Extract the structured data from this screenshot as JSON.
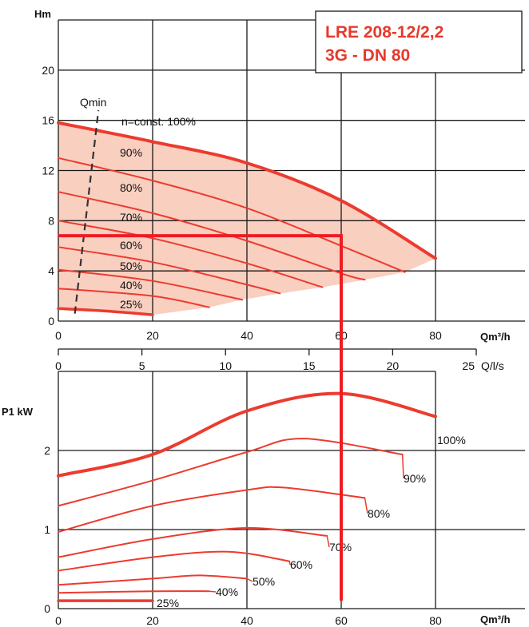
{
  "colors": {
    "curve": "#ec3b2f",
    "fill": "#f9cfc0",
    "grid": "#1a1a1a",
    "text": "#111111",
    "title": "#e53a2c",
    "duty_line": "#ee1c24",
    "qmin": "#333333"
  },
  "title_box": {
    "line1": "LRE 208-12/2,2",
    "line2": "3G - DN 80"
  },
  "chart_data": [
    {
      "type": "line",
      "panel": "head",
      "ylabel": "Hm",
      "xlabel": "Qm³/h",
      "xlim": [
        0,
        80
      ],
      "ylim": [
        0,
        24
      ],
      "x_ticks": [
        "0",
        "20",
        "40",
        "60",
        "80"
      ],
      "y_ticks": [
        "0",
        "4",
        "8",
        "12",
        "16",
        "20"
      ],
      "grid": true,
      "series": [
        {
          "name": "n=const. 100%",
          "x": [
            0,
            20,
            40,
            60,
            80
          ],
          "y": [
            15.8,
            14.3,
            12.6,
            9.6,
            5.0
          ]
        },
        {
          "name": "90%",
          "x": [
            0,
            20,
            40,
            60,
            73.5
          ],
          "y": [
            13.0,
            11.2,
            9.0,
            6.0,
            3.9
          ]
        },
        {
          "name": "80%",
          "x": [
            0,
            20,
            40,
            60,
            65
          ],
          "y": [
            10.3,
            8.6,
            6.4,
            3.8,
            3.3
          ]
        },
        {
          "name": "70%",
          "x": [
            0,
            20,
            40,
            56
          ],
          "y": [
            8.0,
            6.6,
            4.6,
            2.7
          ]
        },
        {
          "name": "60%",
          "x": [
            0,
            20,
            40,
            47
          ],
          "y": [
            5.9,
            4.7,
            2.9,
            2.2
          ]
        },
        {
          "name": "50%",
          "x": [
            0,
            20,
            39
          ],
          "y": [
            4.1,
            3.2,
            1.7
          ]
        },
        {
          "name": "40%",
          "x": [
            0,
            20,
            32
          ],
          "y": [
            2.6,
            2.0,
            1.1
          ]
        },
        {
          "name": "25%",
          "x": [
            0,
            10,
            20
          ],
          "y": [
            1.0,
            0.8,
            0.5
          ]
        }
      ],
      "qmin": {
        "label": "Qmin",
        "x": [
          3.5,
          8.5
        ],
        "y": [
          0.6,
          16.8
        ]
      },
      "operating_point": {
        "x": 60,
        "y": 6.8
      }
    },
    {
      "type": "line",
      "panel": "power",
      "ylabel": "P1 kW",
      "xlabel": "Qm³/h",
      "xlim": [
        0,
        80
      ],
      "ylim": [
        0,
        3
      ],
      "x_ticks": [
        "0",
        "20",
        "40",
        "60",
        "80"
      ],
      "y_ticks": [
        "0",
        "1",
        "2"
      ],
      "secondary_x_label": "Q/l/s",
      "secondary_x_ticks": [
        "0",
        "5",
        "10",
        "15",
        "20",
        "25"
      ],
      "secondary_x_values": [
        0,
        5,
        10,
        15,
        20,
        25
      ],
      "grid": true,
      "series": [
        {
          "name": "100%",
          "x": [
            0,
            20,
            40,
            60,
            80
          ],
          "y": [
            1.68,
            1.95,
            2.5,
            2.72,
            2.43
          ]
        },
        {
          "name": "90%",
          "x": [
            0,
            20,
            40,
            52,
            73
          ],
          "y": [
            1.3,
            1.62,
            1.98,
            2.15,
            1.95
          ]
        },
        {
          "name": "80%",
          "x": [
            0,
            20,
            40,
            48,
            65
          ],
          "y": [
            0.97,
            1.3,
            1.5,
            1.53,
            1.4
          ]
        },
        {
          "name": "70%",
          "x": [
            0,
            20,
            40,
            57
          ],
          "y": [
            0.65,
            0.88,
            1.02,
            0.92
          ]
        },
        {
          "name": "60%",
          "x": [
            0,
            20,
            36,
            49
          ],
          "y": [
            0.48,
            0.65,
            0.72,
            0.6
          ]
        },
        {
          "name": "50%",
          "x": [
            0,
            20,
            30,
            40
          ],
          "y": [
            0.3,
            0.38,
            0.42,
            0.38
          ]
        },
        {
          "name": "40%",
          "x": [
            0,
            20,
            32
          ],
          "y": [
            0.2,
            0.22,
            0.22
          ]
        },
        {
          "name": "25%",
          "x": [
            0,
            20
          ],
          "y": [
            0.1,
            0.1
          ]
        }
      ]
    }
  ]
}
